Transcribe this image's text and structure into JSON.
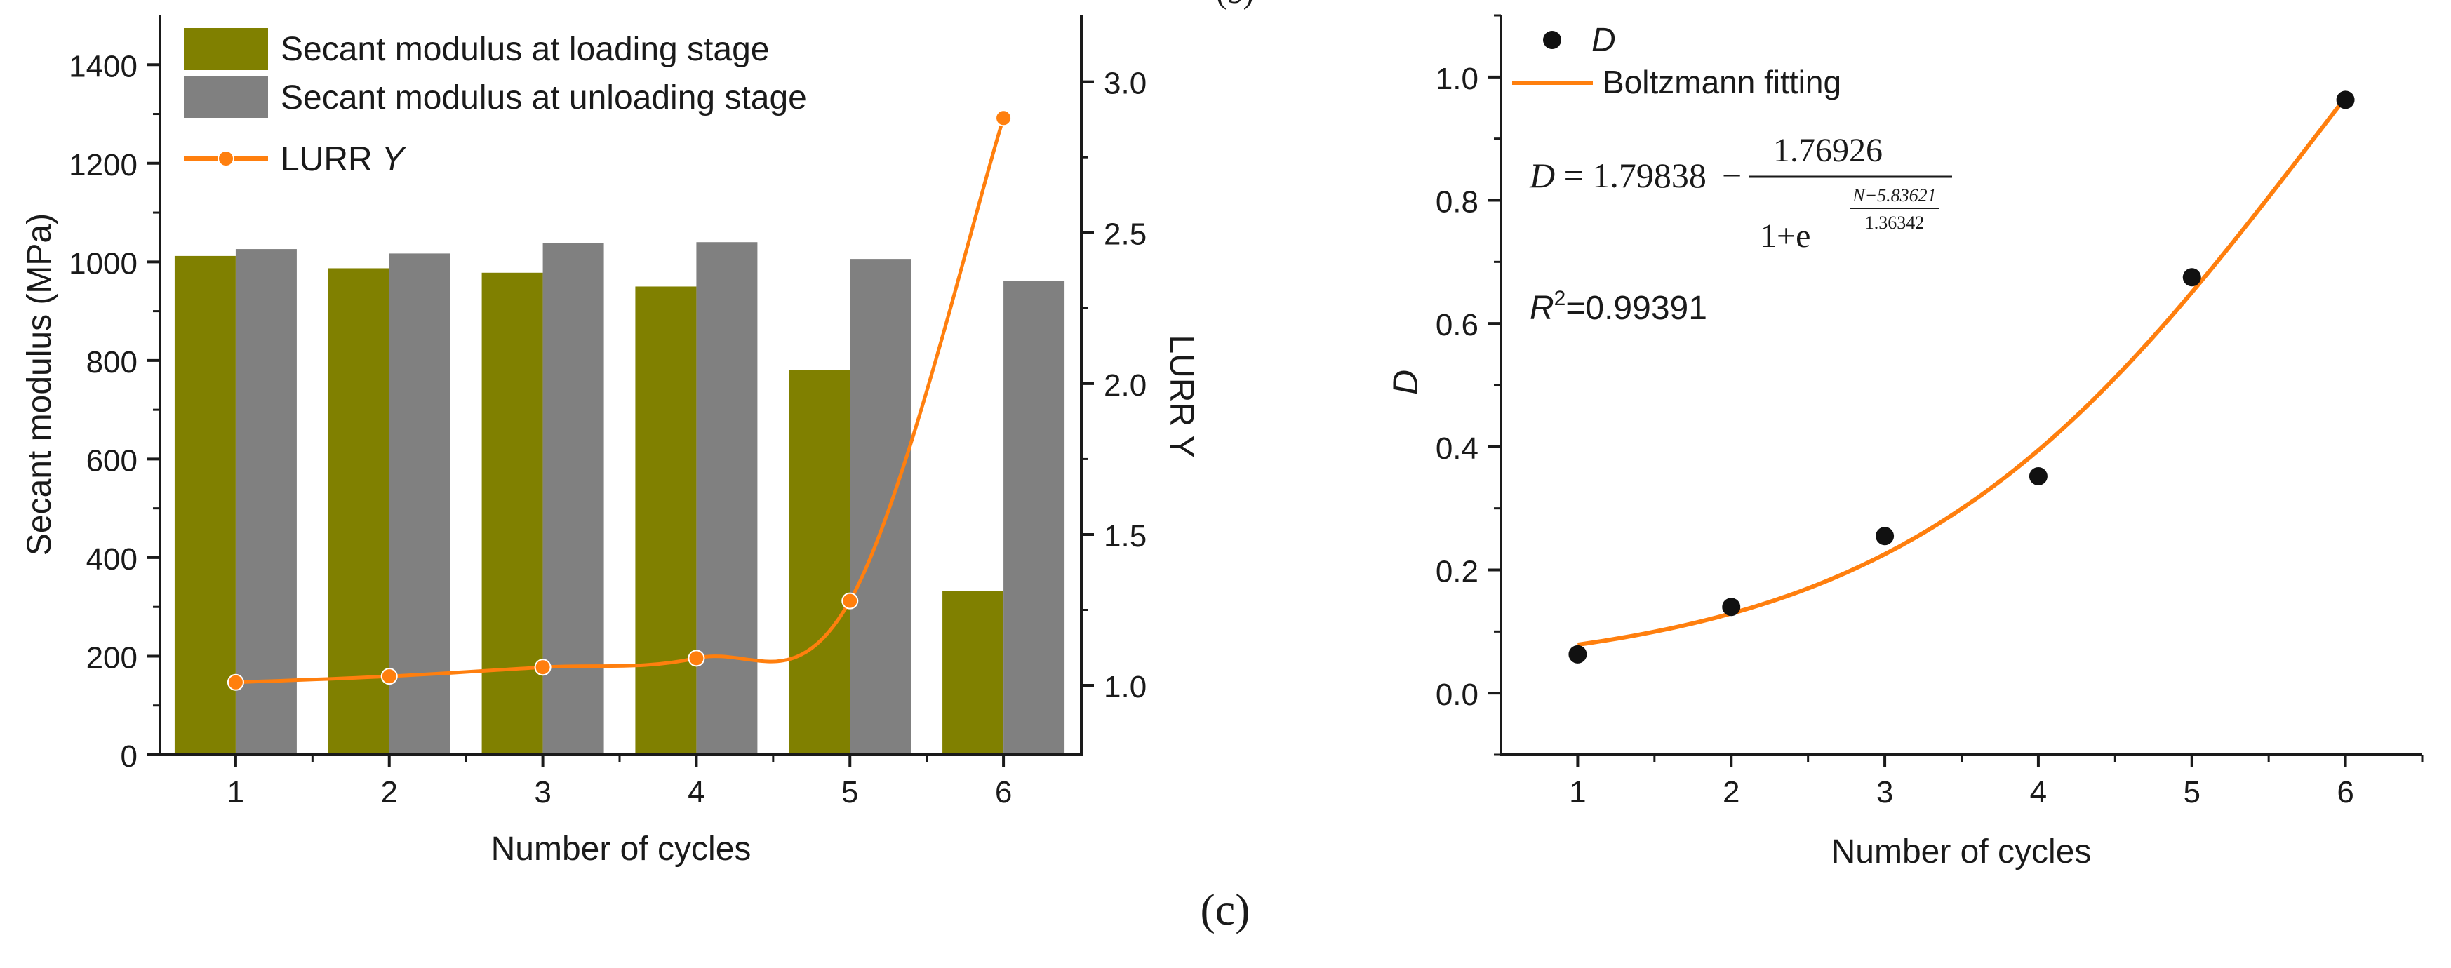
{
  "figure": {
    "panel_label": "(c)",
    "top_fragment": "(b)"
  },
  "colors": {
    "loading": "#808000",
    "unloading": "#808080",
    "orange": "#FF7F0E",
    "axis": "#1a1a1a",
    "point": "#111111"
  },
  "chart_data": [
    {
      "type": "bar+line",
      "title": "",
      "xlabel": "Number of cycles",
      "ylabel": "Secant modulus (MPa)",
      "y2label": "LURR Y",
      "categories": [
        "1",
        "2",
        "3",
        "4",
        "5",
        "6"
      ],
      "ylim": [
        0,
        1500
      ],
      "yticks": [
        "0",
        "200",
        "400",
        "600",
        "800",
        "1000",
        "1200",
        "1400"
      ],
      "y2lim": [
        0.77,
        3.22
      ],
      "y2ticks": [
        "1.0",
        "1.5",
        "2.0",
        "2.5",
        "3.0"
      ],
      "series": [
        {
          "name": "Secant modulus at loading stage",
          "type": "bar",
          "values": [
            1012,
            987,
            978,
            950,
            781,
            333
          ]
        },
        {
          "name": "Secant modulus at unloading stage",
          "type": "bar",
          "values": [
            1026,
            1017,
            1038,
            1040,
            1006,
            961
          ]
        },
        {
          "name": "LURR",
          "name_suffix": "Y",
          "type": "line",
          "axis": "right",
          "values": [
            1.01,
            1.03,
            1.06,
            1.09,
            1.28,
            2.88
          ]
        }
      ],
      "legend": {
        "position": "top-left"
      }
    },
    {
      "type": "scatter+fit",
      "title": "",
      "xlabel": "Number of cycles",
      "ylabel": "D",
      "x": [
        1,
        2,
        3,
        4,
        5,
        6
      ],
      "xticks": [
        "1",
        "2",
        "3",
        "4",
        "5",
        "6"
      ],
      "xlim": [
        0.5,
        6.5
      ],
      "ylim": [
        -0.1,
        1.1
      ],
      "yticks": [
        "0.0",
        "0.2",
        "0.4",
        "0.6",
        "0.8",
        "1.0"
      ],
      "series": [
        {
          "name": "D",
          "type": "scatter",
          "values": [
            0.063,
            0.14,
            0.255,
            0.352,
            0.675,
            0.963
          ]
        },
        {
          "name": "Boltzmann fitting",
          "type": "line",
          "equation": {
            "A2": 1.79838,
            "A": 1.76926,
            "x0": 5.83621,
            "dx": 1.36342
          }
        }
      ],
      "legend": {
        "position": "top-left"
      },
      "annotations": {
        "equation_lhs": "D",
        "equation_a2": "1.79838",
        "equation_minus": "−",
        "equation_numerator": "1.76926",
        "equation_denominator_base": "1+e",
        "equation_exponent_numerator": "N−5.83621",
        "equation_exponent_denominator": "1.36342",
        "r2_label": "R",
        "r2_sup": "2",
        "r2_value": "=0.99391"
      }
    }
  ]
}
